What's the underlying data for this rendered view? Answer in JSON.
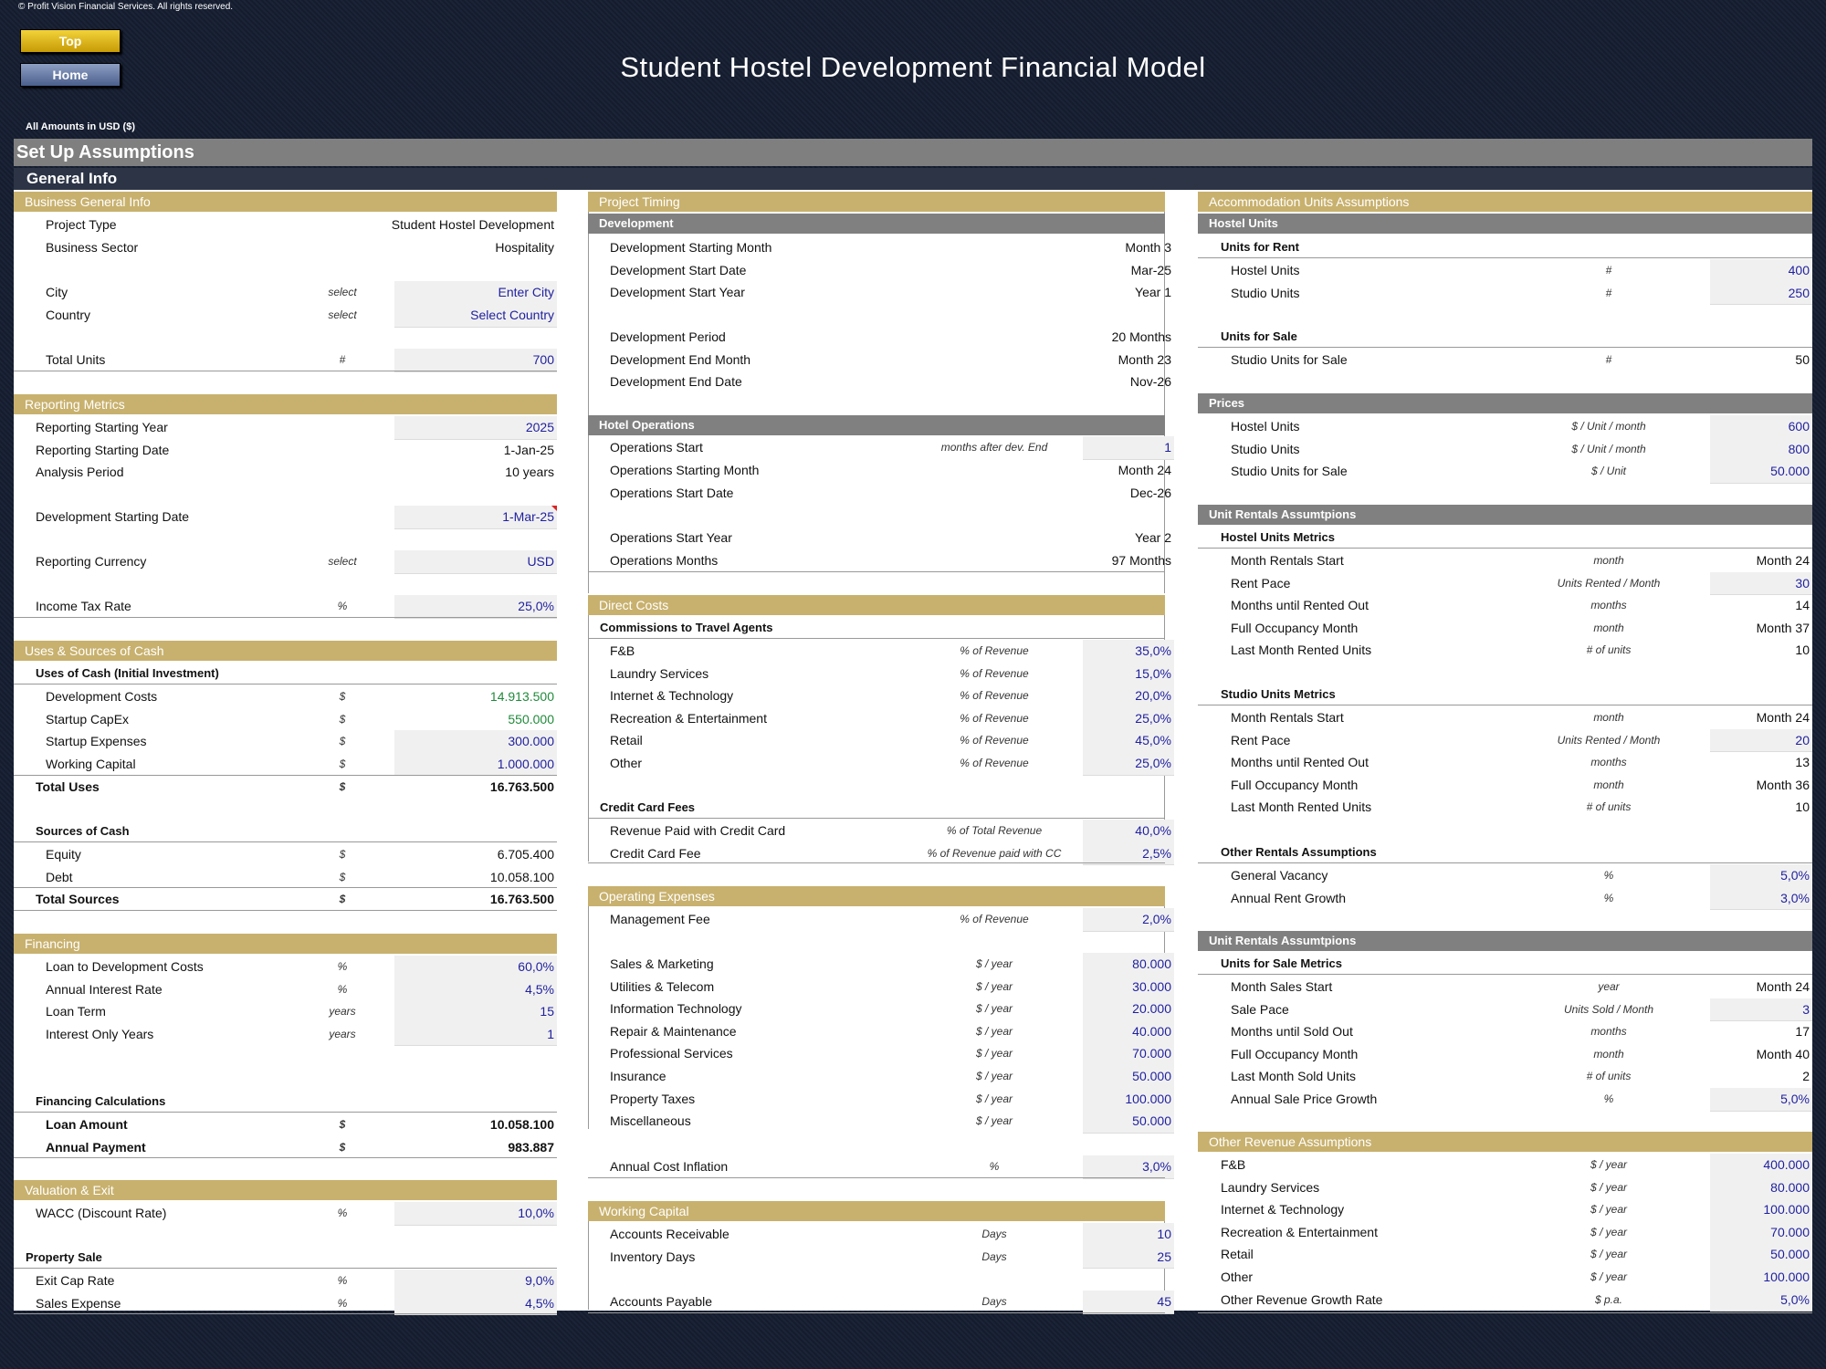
{
  "copyright": "© Profit Vision Financial Services. All rights reserved.",
  "buttons": {
    "top": "Top",
    "home": "Home"
  },
  "title": "Student Hostel Development Financial Model",
  "currency_note": "All Amounts in  USD ($)",
  "setup_title": "Set Up Assumptions",
  "general_title": "General Info",
  "business": {
    "title": "Business General Info",
    "project_type": {
      "label": "Project Type",
      "value": "Student Hostel Development"
    },
    "business_sector": {
      "label": "Business Sector",
      "value": "Hospitality"
    },
    "city": {
      "label": "City",
      "unit": "select",
      "value": "Enter City"
    },
    "country": {
      "label": "Country",
      "unit": "select",
      "value": "Select Country"
    },
    "total_units": {
      "label": "Total Units",
      "unit": "#",
      "value": "700"
    }
  },
  "reporting": {
    "title": "Reporting Metrics",
    "rows": [
      {
        "label": "Reporting Starting Year",
        "unit": "",
        "value": "2025",
        "input": true
      },
      {
        "label": "Reporting Starting Date",
        "unit": "",
        "value": "1-Jan-25",
        "input": false
      },
      {
        "label": "Analysis Period",
        "unit": "",
        "value": "10 years",
        "input": false
      }
    ],
    "dev_start": {
      "label": "Development Starting Date",
      "value": "1-Mar-25"
    },
    "currency": {
      "label": "Reporting Currency",
      "unit": "select",
      "value": "USD"
    },
    "tax": {
      "label": "Income Tax Rate",
      "unit": "%",
      "value": "25,0%"
    }
  },
  "uses_sources": {
    "title": "Uses & Sources of Cash",
    "uses_title": "Uses of Cash (Initial Investment)",
    "uses": [
      {
        "label": "Development Costs",
        "unit": "$",
        "value": "14.913.500",
        "style": "green"
      },
      {
        "label": "Startup CapEx",
        "unit": "$",
        "value": "550.000",
        "style": "green"
      },
      {
        "label": "Startup Expenses",
        "unit": "$",
        "value": "300.000",
        "style": "input"
      },
      {
        "label": "Working Capital",
        "unit": "$",
        "value": "1.000.000",
        "style": "input"
      }
    ],
    "total_uses": {
      "label": "Total Uses",
      "unit": "$",
      "value": "16.763.500"
    },
    "sources_title": "Sources of Cash",
    "sources": [
      {
        "label": "Equity",
        "unit": "$",
        "value": "6.705.400"
      },
      {
        "label": "Debt",
        "unit": "$",
        "value": "10.058.100"
      }
    ],
    "total_sources": {
      "label": "Total Sources",
      "unit": "$",
      "value": "16.763.500"
    }
  },
  "financing": {
    "title": "Financing",
    "rows1": [
      {
        "label": "Loan to Development Costs",
        "unit": "%",
        "value": "60,0%"
      },
      {
        "label": "Annual Interest Rate",
        "unit": "%",
        "value": "4,5%"
      }
    ],
    "rows2": [
      {
        "label": "Loan Term",
        "unit": "years",
        "value": "15"
      },
      {
        "label": "Interest Only Years",
        "unit": "years",
        "value": "1"
      }
    ],
    "calc_title": "Financing Calculations",
    "calc": [
      {
        "label": "Loan Amount",
        "unit": "$",
        "value": "10.058.100"
      },
      {
        "label": "Annual Payment",
        "unit": "$",
        "value": "983.887"
      }
    ]
  },
  "valuation": {
    "title": "Valuation & Exit",
    "wacc": {
      "label": "WACC (Discount Rate)",
      "unit": "%",
      "value": "10,0%"
    },
    "sale_title": "Property Sale",
    "rows": [
      {
        "label": "Exit Cap Rate",
        "unit": "%",
        "value": "9,0%"
      },
      {
        "label": "Sales Expense",
        "unit": "%",
        "value": "4,5%"
      }
    ]
  },
  "timing": {
    "title": "Project Timing",
    "dev_title": "Development",
    "dev1": [
      {
        "label": "Development Starting Month",
        "value": "Month 3"
      },
      {
        "label": "Development Start Date",
        "value": "Mar-25"
      },
      {
        "label": "Development Start Year",
        "value": "Year 1"
      }
    ],
    "dev2": [
      {
        "label": "Development Period",
        "value": "20 Months"
      },
      {
        "label": "Development End Month",
        "value": "Month 23"
      },
      {
        "label": "Development End Date",
        "value": "Nov-26"
      }
    ],
    "ops_title": "Hotel Operations",
    "ops_start": {
      "label": "Operations Start",
      "unit": "months after dev. End",
      "value": "1"
    },
    "ops1": [
      {
        "label": "Operations Starting Month",
        "value": "Month 24"
      },
      {
        "label": "Operations Start Date",
        "value": "Dec-26"
      }
    ],
    "ops2": [
      {
        "label": "Operations Start Year",
        "value": "Year 2"
      },
      {
        "label": "Operations Months",
        "value": "97 Months"
      }
    ]
  },
  "direct": {
    "title": "Direct Costs",
    "comm_title": "Commissions to Travel Agents",
    "comm": [
      {
        "label": "F&B",
        "unit": "% of Revenue",
        "value": "35,0%"
      },
      {
        "label": "Laundry Services",
        "unit": "% of Revenue",
        "value": "15,0%"
      },
      {
        "label": "Internet & Technology",
        "unit": "% of Revenue",
        "value": "20,0%"
      },
      {
        "label": "Recreation & Entertainment",
        "unit": "% of Revenue",
        "value": "25,0%"
      },
      {
        "label": "Retail",
        "unit": "% of Revenue",
        "value": "45,0%"
      },
      {
        "label": "Other",
        "unit": "% of Revenue",
        "value": "25,0%"
      }
    ],
    "cc_title": "Credit Card Fees",
    "cc": [
      {
        "label": "Revenue Paid with Credit Card",
        "unit": "% of Total Revenue",
        "value": "40,0%"
      },
      {
        "label": "Credit Card Fee",
        "unit": "% of Revenue paid with CC",
        "value": "2,5%"
      }
    ]
  },
  "opex": {
    "title": "Operating Expenses",
    "mgmt": {
      "label": "Management Fee",
      "unit": "% of Revenue",
      "value": "2,0%"
    },
    "rows": [
      {
        "label": "Sales & Marketing",
        "unit": "$ / year",
        "value": "80.000"
      },
      {
        "label": "Utilities & Telecom",
        "unit": "$ / year",
        "value": "30.000"
      },
      {
        "label": "Information Technology",
        "unit": "$ / year",
        "value": "20.000"
      },
      {
        "label": "Repair & Maintenance",
        "unit": "$ / year",
        "value": "40.000"
      },
      {
        "label": "Professional Services",
        "unit": "$ / year",
        "value": "70.000"
      },
      {
        "label": "Insurance",
        "unit": "$ / year",
        "value": "50.000"
      },
      {
        "label": "Property Taxes",
        "unit": "$ / year",
        "value": "100.000"
      },
      {
        "label": "Miscellaneous",
        "unit": "$ / year",
        "value": "50.000"
      }
    ],
    "inflation": {
      "label": "Annual Cost Inflation",
      "unit": "%",
      "value": "3,0%"
    }
  },
  "wc": {
    "title": "Working Capital",
    "rows": [
      {
        "label": "Accounts Receivable",
        "unit": "Days",
        "value": "10"
      },
      {
        "label": "Inventory Days",
        "unit": "Days",
        "value": "25"
      }
    ],
    "ap": {
      "label": "Accounts Payable",
      "unit": "Days",
      "value": "45"
    }
  },
  "accom": {
    "title": "Accommodation Units Assumptions",
    "hostel_title": "Hostel Units",
    "rent_title": "Units for Rent",
    "rent": [
      {
        "label": "Hostel Units",
        "unit": "#",
        "value": "400"
      },
      {
        "label": "Studio Units",
        "unit": "#",
        "value": "250"
      }
    ],
    "sale_title": "Units for Sale",
    "sale": {
      "label": "Studio Units for Sale",
      "unit": "#",
      "value": "50"
    },
    "prices_title": "Prices",
    "prices": [
      {
        "label": "Hostel Units",
        "unit": "$ / Unit / month",
        "value": "600"
      },
      {
        "label": "Studio Units",
        "unit": "$ / Unit / month",
        "value": "800"
      },
      {
        "label": "Studio Units for Sale",
        "unit": "$ / Unit",
        "value": "50.000"
      }
    ],
    "rentals_title": "Unit Rentals Assumtpions",
    "hostel_metrics_title": "Hostel Units Metrics",
    "hostel_metrics": [
      {
        "label": "Month Rentals Start",
        "unit": "month",
        "value": "Month 24",
        "input": false
      },
      {
        "label": "Rent Pace",
        "unit": "Units Rented / Month",
        "value": "30",
        "input": true
      },
      {
        "label": "Months until Rented Out",
        "unit": "months",
        "value": "14",
        "input": false
      },
      {
        "label": "Full Occupancy Month",
        "unit": "month",
        "value": "Month 37",
        "input": false
      },
      {
        "label": "Last Month Rented Units",
        "unit": "# of units",
        "value": "10",
        "input": false
      }
    ],
    "studio_metrics_title": "Studio Units Metrics",
    "studio_metrics": [
      {
        "label": "Month Rentals Start",
        "unit": "month",
        "value": "Month 24",
        "input": false
      },
      {
        "label": "Rent Pace",
        "unit": "Units Rented / Month",
        "value": "20",
        "input": true
      },
      {
        "label": "Months until Rented Out",
        "unit": "months",
        "value": "13",
        "input": false
      },
      {
        "label": "Full Occupancy Month",
        "unit": "month",
        "value": "Month 36",
        "input": false
      },
      {
        "label": "Last Month Rented Units",
        "unit": "# of units",
        "value": "10",
        "input": false
      }
    ],
    "other_rentals_title": "Other Rentals Assumptions",
    "other_rentals": [
      {
        "label": "General Vacancy",
        "unit": "%",
        "value": "5,0%"
      },
      {
        "label": "Annual Rent Growth",
        "unit": "%",
        "value": "3,0%"
      }
    ],
    "rentals2_title": "Unit Rentals Assumtpions",
    "sale_metrics_title": "Units for Sale Metrics",
    "sale_metrics": [
      {
        "label": "Month Sales Start",
        "unit": "year",
        "value": "Month 24",
        "input": false
      },
      {
        "label": "Sale Pace",
        "unit": "Units Sold / Month",
        "value": "3",
        "input": true
      },
      {
        "label": "Months until Sold Out",
        "unit": "months",
        "value": "17",
        "input": false
      },
      {
        "label": "Full Occupancy Month",
        "unit": "month",
        "value": "Month 40",
        "input": false
      },
      {
        "label": "Last Month Sold Units",
        "unit": "# of units",
        "value": "2",
        "input": false
      },
      {
        "label": "Annual Sale Price Growth",
        "unit": "%",
        "value": "5,0%",
        "input": true
      }
    ]
  },
  "other_revenue": {
    "title": "Other Revenue Assumptions",
    "rows": [
      {
        "label": "F&B",
        "unit": "$ / year",
        "value": "400.000"
      },
      {
        "label": "Laundry Services",
        "unit": "$ / year",
        "value": "80.000"
      },
      {
        "label": "Internet & Technology",
        "unit": "$ / year",
        "value": "100.000"
      },
      {
        "label": "Recreation & Entertainment",
        "unit": "$ / year",
        "value": "70.000"
      },
      {
        "label": "Retail",
        "unit": "$ / year",
        "value": "50.000"
      },
      {
        "label": "Other",
        "unit": "$ / year",
        "value": "100.000"
      },
      {
        "label": "Other Revenue Growth Rate",
        "unit": "$ p.a.",
        "value": "5,0%"
      }
    ]
  }
}
